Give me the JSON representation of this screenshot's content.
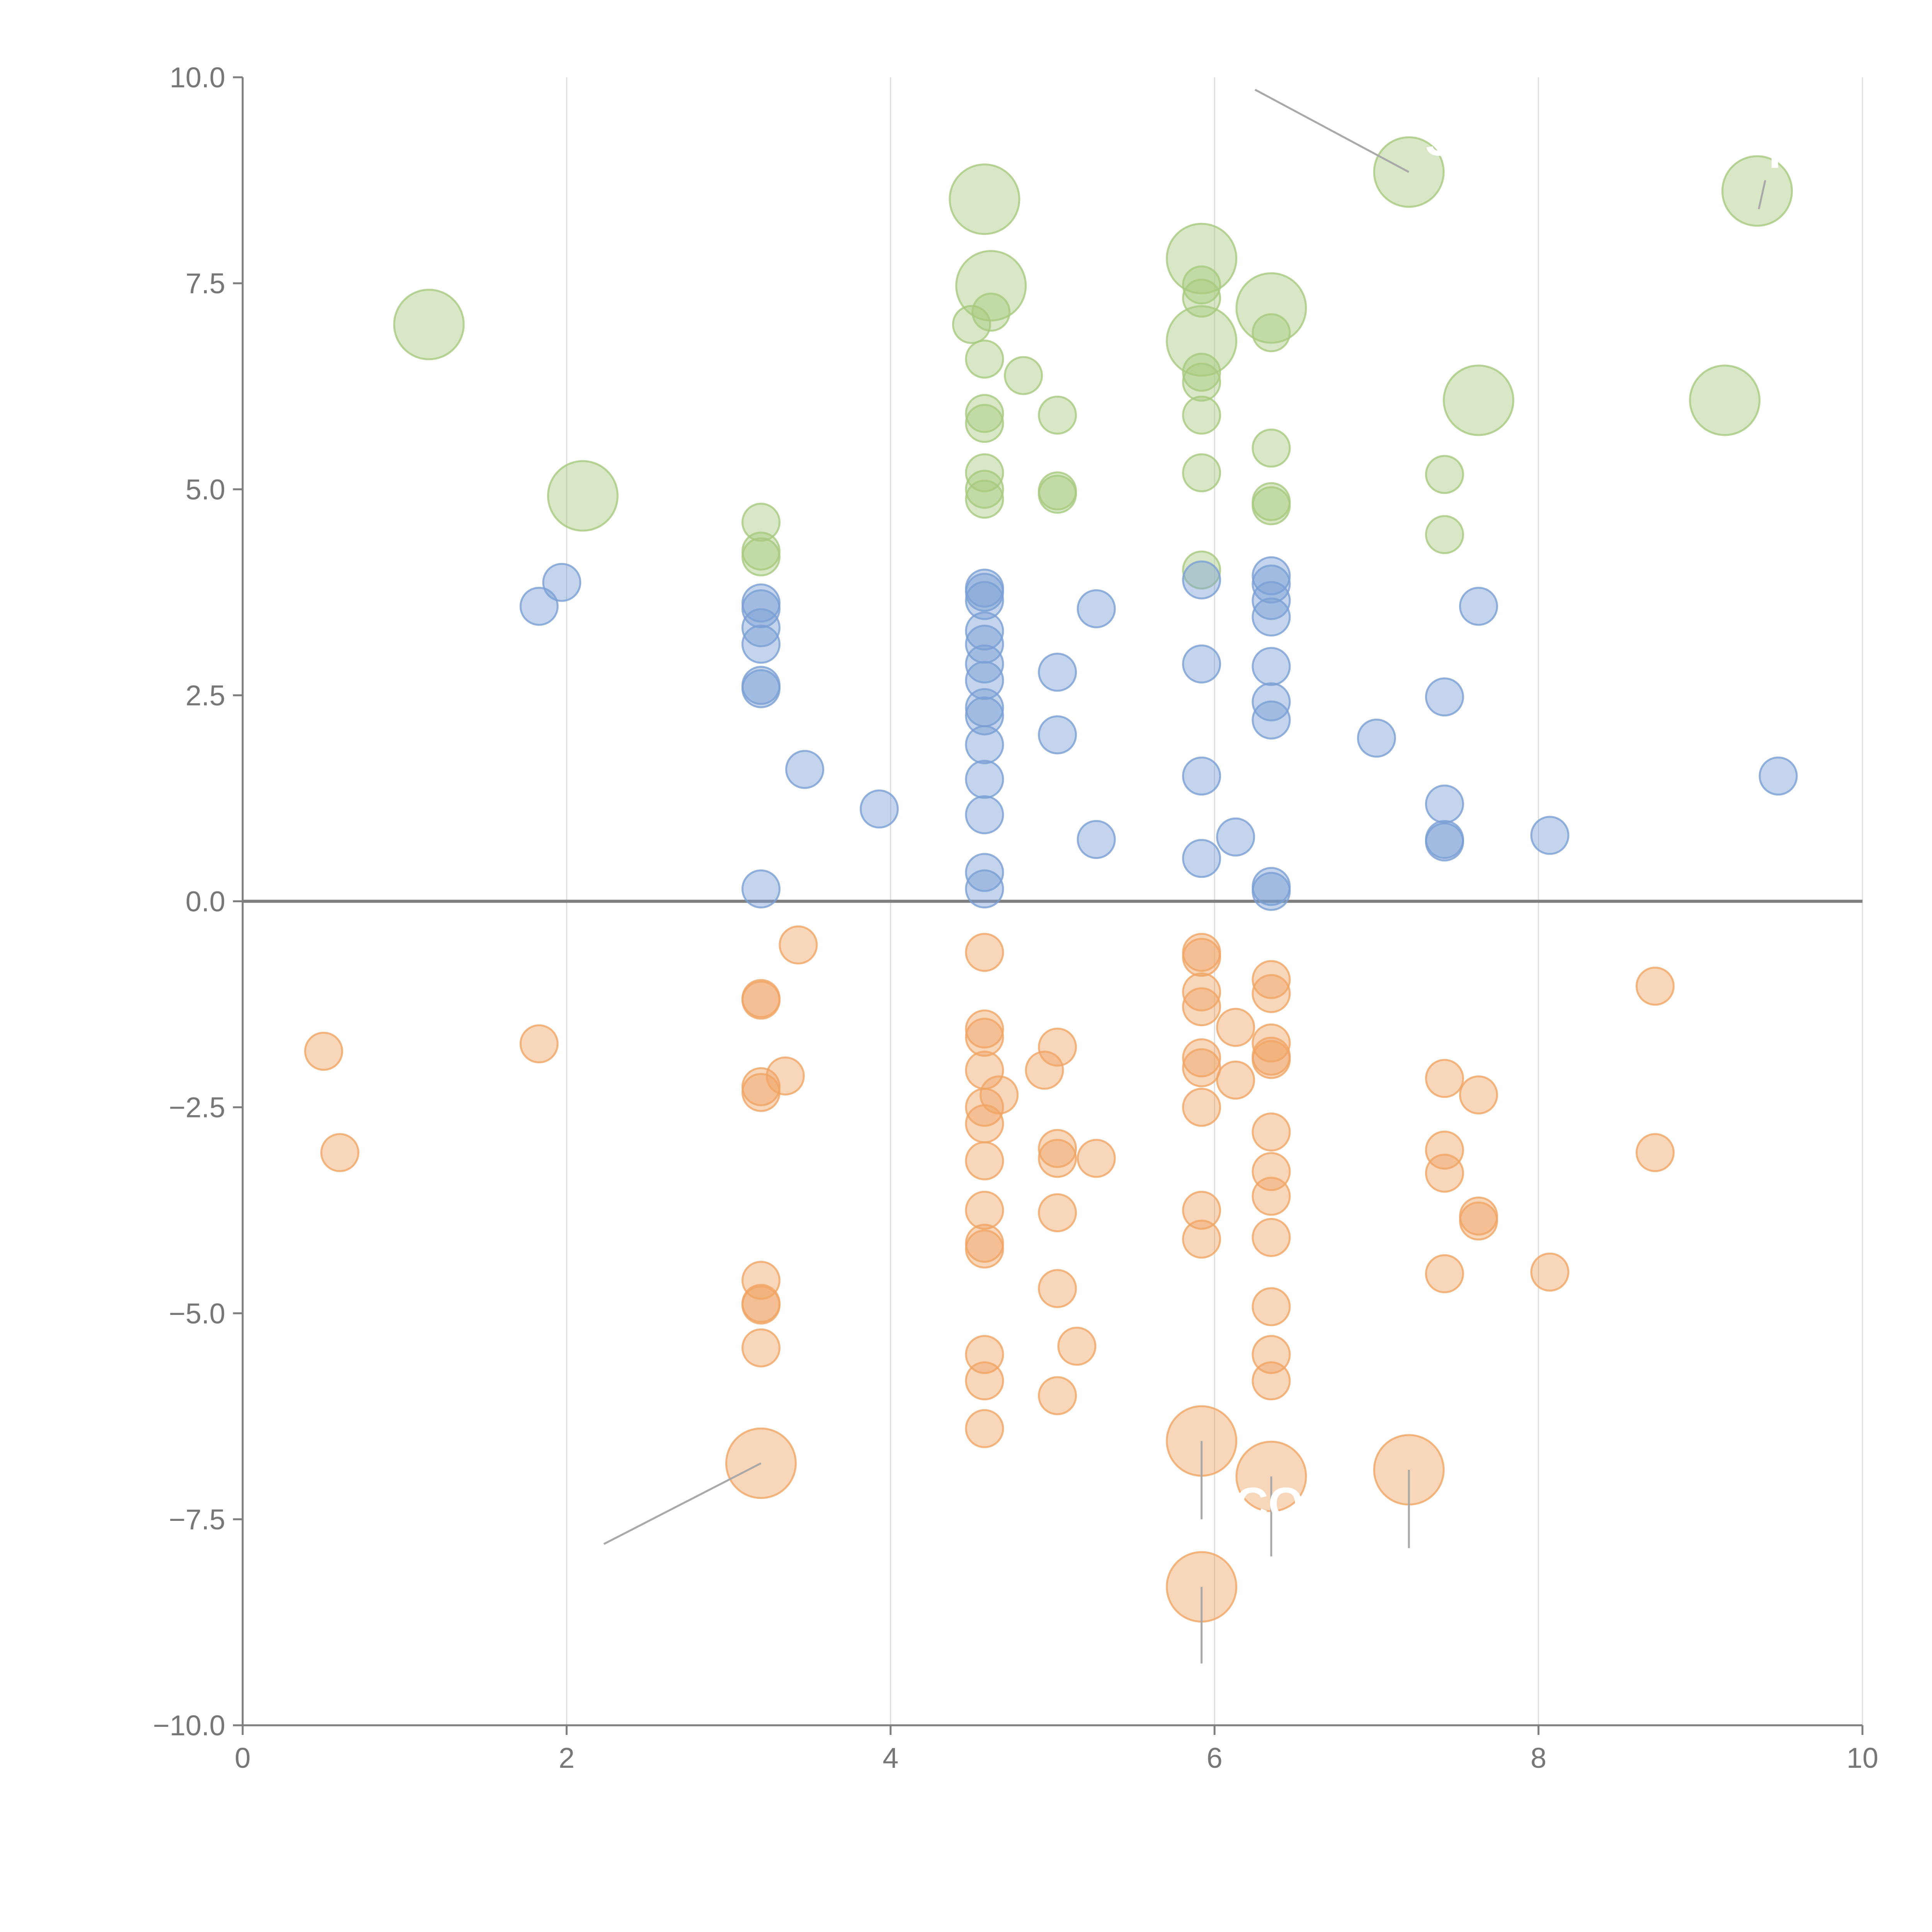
{
  "colors": {
    "background": "#ffffff",
    "positive_green": "#a8c97f",
    "mid_blue": "#7a9fd4",
    "negative_orange": "#f0a565",
    "axis": "#7f7f7f",
    "zero_line": "#7f7f7f",
    "grid": "#dddddd",
    "leader": "#a9a9a9",
    "tick_text": "#777777"
  },
  "chart_data": {
    "type": "scatter",
    "subtype": "bubble",
    "title": "",
    "xlabel": "",
    "ylabel": "",
    "xlim": [
      0,
      10
    ],
    "ylim": [
      -10,
      10
    ],
    "x_ticks": [
      0,
      2,
      4,
      6,
      8,
      10
    ],
    "x_tick_labels": [
      "0",
      "2",
      "4",
      "6",
      "8",
      "10"
    ],
    "y_ticks": [
      -10,
      -7.5,
      -5,
      -2.5,
      0,
      2.5,
      5,
      7.5,
      10
    ],
    "y_tick_labels": [
      "−10.0",
      "−7.5",
      "−5.0",
      "−2.5",
      "0.0",
      "2.5",
      "5.0",
      "7.5",
      "10.0"
    ],
    "grid": {
      "x": true,
      "y": false
    },
    "zero_line": true,
    "legend": "none",
    "series": [
      {
        "color_key": "positive_green",
        "points": [
          {
            "x": 1.15,
            "y": 7.0,
            "s": 2
          },
          {
            "x": 2.1,
            "y": 4.92,
            "s": 2
          },
          {
            "x": 3.2,
            "y": 4.6,
            "s": 1
          },
          {
            "x": 3.2,
            "y": 4.25,
            "s": 1
          },
          {
            "x": 3.2,
            "y": 4.18,
            "s": 1
          },
          {
            "x": 4.5,
            "y": 7.0,
            "s": 1
          },
          {
            "x": 4.58,
            "y": 8.52,
            "s": 2
          },
          {
            "x": 4.58,
            "y": 6.58,
            "s": 1
          },
          {
            "x": 4.58,
            "y": 5.92,
            "s": 1
          },
          {
            "x": 4.58,
            "y": 5.8,
            "s": 1
          },
          {
            "x": 4.58,
            "y": 5.2,
            "s": 1
          },
          {
            "x": 4.58,
            "y": 5.0,
            "s": 1
          },
          {
            "x": 4.58,
            "y": 4.88,
            "s": 1
          },
          {
            "x": 4.62,
            "y": 7.47,
            "s": 2
          },
          {
            "x": 4.62,
            "y": 7.15,
            "s": 1
          },
          {
            "x": 4.82,
            "y": 6.38,
            "s": 1
          },
          {
            "x": 5.03,
            "y": 5.9,
            "s": 1
          },
          {
            "x": 5.03,
            "y": 4.98,
            "s": 1
          },
          {
            "x": 5.03,
            "y": 4.94,
            "s": 1
          },
          {
            "x": 5.92,
            "y": 7.8,
            "s": 2
          },
          {
            "x": 5.92,
            "y": 7.48,
            "s": 1
          },
          {
            "x": 5.92,
            "y": 7.32,
            "s": 1
          },
          {
            "x": 5.92,
            "y": 6.8,
            "s": 2
          },
          {
            "x": 5.92,
            "y": 6.42,
            "s": 1
          },
          {
            "x": 5.92,
            "y": 6.3,
            "s": 1
          },
          {
            "x": 5.92,
            "y": 5.9,
            "s": 1
          },
          {
            "x": 5.92,
            "y": 5.2,
            "s": 1
          },
          {
            "x": 5.92,
            "y": 4.02,
            "s": 1
          },
          {
            "x": 6.35,
            "y": 7.2,
            "s": 2
          },
          {
            "x": 6.35,
            "y": 6.9,
            "s": 1
          },
          {
            "x": 6.35,
            "y": 5.5,
            "s": 1
          },
          {
            "x": 6.35,
            "y": 4.85,
            "s": 1
          },
          {
            "x": 6.35,
            "y": 4.8,
            "s": 1
          },
          {
            "x": 7.2,
            "y": 8.85,
            "s": 2
          },
          {
            "x": 7.42,
            "y": 5.18,
            "s": 1
          },
          {
            "x": 7.42,
            "y": 4.45,
            "s": 1
          },
          {
            "x": 7.63,
            "y": 6.08,
            "s": 2
          },
          {
            "x": 9.15,
            "y": 6.08,
            "s": 2
          },
          {
            "x": 9.35,
            "y": 8.62,
            "s": 2
          }
        ]
      },
      {
        "color_key": "mid_blue",
        "points": [
          {
            "x": 1.83,
            "y": 3.58,
            "s": 1
          },
          {
            "x": 1.97,
            "y": 3.87,
            "s": 1
          },
          {
            "x": 3.2,
            "y": 3.62,
            "s": 1
          },
          {
            "x": 3.2,
            "y": 3.55,
            "s": 1
          },
          {
            "x": 3.2,
            "y": 3.32,
            "s": 1
          },
          {
            "x": 3.2,
            "y": 3.12,
            "s": 1
          },
          {
            "x": 3.2,
            "y": 2.62,
            "s": 1
          },
          {
            "x": 3.2,
            "y": 2.58,
            "s": 1
          },
          {
            "x": 3.2,
            "y": 0.15,
            "s": 1
          },
          {
            "x": 3.47,
            "y": 1.6,
            "s": 1
          },
          {
            "x": 3.93,
            "y": 1.12,
            "s": 1
          },
          {
            "x": 4.58,
            "y": 3.8,
            "s": 1
          },
          {
            "x": 4.58,
            "y": 3.75,
            "s": 1
          },
          {
            "x": 4.58,
            "y": 3.65,
            "s": 1
          },
          {
            "x": 4.58,
            "y": 3.28,
            "s": 1
          },
          {
            "x": 4.58,
            "y": 3.12,
            "s": 1
          },
          {
            "x": 4.58,
            "y": 2.88,
            "s": 1
          },
          {
            "x": 4.58,
            "y": 2.68,
            "s": 1
          },
          {
            "x": 4.58,
            "y": 2.35,
            "s": 1
          },
          {
            "x": 4.58,
            "y": 2.25,
            "s": 1
          },
          {
            "x": 4.58,
            "y": 1.9,
            "s": 1
          },
          {
            "x": 4.58,
            "y": 1.48,
            "s": 1
          },
          {
            "x": 4.58,
            "y": 1.05,
            "s": 1
          },
          {
            "x": 4.58,
            "y": 0.35,
            "s": 1
          },
          {
            "x": 4.58,
            "y": 0.15,
            "s": 1
          },
          {
            "x": 5.03,
            "y": 2.78,
            "s": 1
          },
          {
            "x": 5.03,
            "y": 2.02,
            "s": 1
          },
          {
            "x": 5.27,
            "y": 3.55,
            "s": 1
          },
          {
            "x": 5.27,
            "y": 0.75,
            "s": 1
          },
          {
            "x": 5.92,
            "y": 3.9,
            "s": 1
          },
          {
            "x": 5.92,
            "y": 2.88,
            "s": 1
          },
          {
            "x": 5.92,
            "y": 1.52,
            "s": 1
          },
          {
            "x": 5.92,
            "y": 0.52,
            "s": 1
          },
          {
            "x": 6.13,
            "y": 0.78,
            "s": 1
          },
          {
            "x": 6.35,
            "y": 3.95,
            "s": 1
          },
          {
            "x": 6.35,
            "y": 3.85,
            "s": 1
          },
          {
            "x": 6.35,
            "y": 3.65,
            "s": 1
          },
          {
            "x": 6.35,
            "y": 3.45,
            "s": 1
          },
          {
            "x": 6.35,
            "y": 2.85,
            "s": 1
          },
          {
            "x": 6.35,
            "y": 2.42,
            "s": 1
          },
          {
            "x": 6.35,
            "y": 2.2,
            "s": 1
          },
          {
            "x": 6.35,
            "y": 0.18,
            "s": 1
          },
          {
            "x": 6.35,
            "y": 0.12,
            "s": 1
          },
          {
            "x": 7.0,
            "y": 1.98,
            "s": 1
          },
          {
            "x": 7.42,
            "y": 2.48,
            "s": 1
          },
          {
            "x": 7.42,
            "y": 1.18,
            "s": 1
          },
          {
            "x": 7.42,
            "y": 0.75,
            "s": 1
          },
          {
            "x": 7.42,
            "y": 0.72,
            "s": 1
          },
          {
            "x": 7.63,
            "y": 3.58,
            "s": 1
          },
          {
            "x": 8.07,
            "y": 0.8,
            "s": 1
          },
          {
            "x": 9.48,
            "y": 1.52,
            "s": 1
          }
        ]
      },
      {
        "color_key": "negative_orange",
        "points": [
          {
            "x": 0.5,
            "y": -1.82,
            "s": 1
          },
          {
            "x": 0.6,
            "y": -3.05,
            "s": 1
          },
          {
            "x": 1.83,
            "y": -1.73,
            "s": 1
          },
          {
            "x": 3.2,
            "y": -1.18,
            "s": 1
          },
          {
            "x": 3.2,
            "y": -1.2,
            "s": 1
          },
          {
            "x": 3.2,
            "y": -2.25,
            "s": 1
          },
          {
            "x": 3.2,
            "y": -2.32,
            "s": 1
          },
          {
            "x": 3.2,
            "y": -4.6,
            "s": 1
          },
          {
            "x": 3.2,
            "y": -4.88,
            "s": 1
          },
          {
            "x": 3.2,
            "y": -4.9,
            "s": 1
          },
          {
            "x": 3.2,
            "y": -5.42,
            "s": 1
          },
          {
            "x": 3.2,
            "y": -6.82,
            "s": 2
          },
          {
            "x": 3.35,
            "y": -2.12,
            "s": 1
          },
          {
            "x": 3.43,
            "y": -0.53,
            "s": 1
          },
          {
            "x": 4.58,
            "y": -0.62,
            "s": 1
          },
          {
            "x": 4.58,
            "y": -1.55,
            "s": 1
          },
          {
            "x": 4.58,
            "y": -1.65,
            "s": 1
          },
          {
            "x": 4.58,
            "y": -2.05,
            "s": 1
          },
          {
            "x": 4.58,
            "y": -2.5,
            "s": 1
          },
          {
            "x": 4.58,
            "y": -2.7,
            "s": 1
          },
          {
            "x": 4.58,
            "y": -3.15,
            "s": 1
          },
          {
            "x": 4.58,
            "y": -3.75,
            "s": 1
          },
          {
            "x": 4.58,
            "y": -4.15,
            "s": 1
          },
          {
            "x": 4.58,
            "y": -4.22,
            "s": 1
          },
          {
            "x": 4.58,
            "y": -5.5,
            "s": 1
          },
          {
            "x": 4.58,
            "y": -5.82,
            "s": 1
          },
          {
            "x": 4.58,
            "y": -6.4,
            "s": 1
          },
          {
            "x": 4.67,
            "y": -2.35,
            "s": 1
          },
          {
            "x": 4.95,
            "y": -2.05,
            "s": 1
          },
          {
            "x": 5.03,
            "y": -1.77,
            "s": 1
          },
          {
            "x": 5.03,
            "y": -3.0,
            "s": 1
          },
          {
            "x": 5.03,
            "y": -3.12,
            "s": 1
          },
          {
            "x": 5.03,
            "y": -3.78,
            "s": 1
          },
          {
            "x": 5.03,
            "y": -4.7,
            "s": 1
          },
          {
            "x": 5.03,
            "y": -6.0,
            "s": 1
          },
          {
            "x": 5.15,
            "y": -5.4,
            "s": 1
          },
          {
            "x": 5.27,
            "y": -3.12,
            "s": 1
          },
          {
            "x": 5.92,
            "y": -0.62,
            "s": 1
          },
          {
            "x": 5.92,
            "y": -0.68,
            "s": 1
          },
          {
            "x": 5.92,
            "y": -1.1,
            "s": 1
          },
          {
            "x": 5.92,
            "y": -1.28,
            "s": 1
          },
          {
            "x": 5.92,
            "y": -1.9,
            "s": 1
          },
          {
            "x": 5.92,
            "y": -2.02,
            "s": 1
          },
          {
            "x": 5.92,
            "y": -2.5,
            "s": 1
          },
          {
            "x": 5.92,
            "y": -3.75,
            "s": 1
          },
          {
            "x": 5.92,
            "y": -4.1,
            "s": 1
          },
          {
            "x": 5.92,
            "y": -6.55,
            "s": 2
          },
          {
            "x": 5.92,
            "y": -8.32,
            "s": 2
          },
          {
            "x": 6.13,
            "y": -1.53,
            "s": 1
          },
          {
            "x": 6.13,
            "y": -2.17,
            "s": 1
          },
          {
            "x": 6.35,
            "y": -0.95,
            "s": 1
          },
          {
            "x": 6.35,
            "y": -1.12,
            "s": 1
          },
          {
            "x": 6.35,
            "y": -1.72,
            "s": 1
          },
          {
            "x": 6.35,
            "y": -1.88,
            "s": 1
          },
          {
            "x": 6.35,
            "y": -1.92,
            "s": 1
          },
          {
            "x": 6.35,
            "y": -2.8,
            "s": 1
          },
          {
            "x": 6.35,
            "y": -3.28,
            "s": 1
          },
          {
            "x": 6.35,
            "y": -3.58,
            "s": 1
          },
          {
            "x": 6.35,
            "y": -4.08,
            "s": 1
          },
          {
            "x": 6.35,
            "y": -4.92,
            "s": 1
          },
          {
            "x": 6.35,
            "y": -5.5,
            "s": 1
          },
          {
            "x": 6.35,
            "y": -5.82,
            "s": 1
          },
          {
            "x": 6.35,
            "y": -6.98,
            "s": 2
          },
          {
            "x": 7.2,
            "y": -6.9,
            "s": 2
          },
          {
            "x": 7.42,
            "y": -2.15,
            "s": 1
          },
          {
            "x": 7.42,
            "y": -3.02,
            "s": 1
          },
          {
            "x": 7.42,
            "y": -3.3,
            "s": 1
          },
          {
            "x": 7.42,
            "y": -4.52,
            "s": 1
          },
          {
            "x": 7.63,
            "y": -2.35,
            "s": 1
          },
          {
            "x": 7.63,
            "y": -3.82,
            "s": 1
          },
          {
            "x": 7.63,
            "y": -3.88,
            "s": 1
          },
          {
            "x": 8.07,
            "y": -4.5,
            "s": 1
          },
          {
            "x": 8.72,
            "y": -1.03,
            "s": 1
          },
          {
            "x": 8.72,
            "y": -3.05,
            "s": 1
          }
        ]
      }
    ],
    "annotations": [
      {
        "text": "S",
        "point": {
          "x": 7.2,
          "y": 8.85
        },
        "label_at": {
          "x": 7.3,
          "y": 9.05
        },
        "leader_from": {
          "x": 6.25,
          "y": 9.85
        },
        "leader_to": {
          "x": 7.2,
          "y": 8.85
        }
      },
      {
        "text": "H",
        "point": {
          "x": 9.35,
          "y": 8.62
        },
        "label_at": {
          "x": 9.42,
          "y": 8.9
        },
        "leader_from": {
          "x": 9.36,
          "y": 8.4
        },
        "leader_to": {
          "x": 9.4,
          "y": 8.75
        }
      },
      {
        "text": "ICO",
        "point": {
          "x": 6.35,
          "y": -6.98
        },
        "label_at": {
          "x": 6.05,
          "y": -7.5
        },
        "leader_from": {
          "x": 6.35,
          "y": -6.98
        },
        "leader_to": {
          "x": 6.35,
          "y": -7.95
        }
      },
      {
        "text": "",
        "point": {
          "x": 3.2,
          "y": -6.82
        },
        "leader_from": {
          "x": 3.2,
          "y": -6.82
        },
        "leader_to": {
          "x": 2.23,
          "y": -7.8
        }
      },
      {
        "text": "",
        "point": {
          "x": 5.92,
          "y": -6.55
        },
        "leader_from": {
          "x": 5.92,
          "y": -6.55
        },
        "leader_to": {
          "x": 5.92,
          "y": -7.5
        }
      },
      {
        "text": "",
        "point": {
          "x": 7.2,
          "y": -6.9
        },
        "leader_from": {
          "x": 7.2,
          "y": -6.9
        },
        "leader_to": {
          "x": 7.2,
          "y": -7.85
        }
      },
      {
        "text": "",
        "point": {
          "x": 5.92,
          "y": -8.32
        },
        "leader_from": {
          "x": 5.92,
          "y": -8.32
        },
        "leader_to": {
          "x": 5.92,
          "y": -9.25
        }
      }
    ]
  }
}
